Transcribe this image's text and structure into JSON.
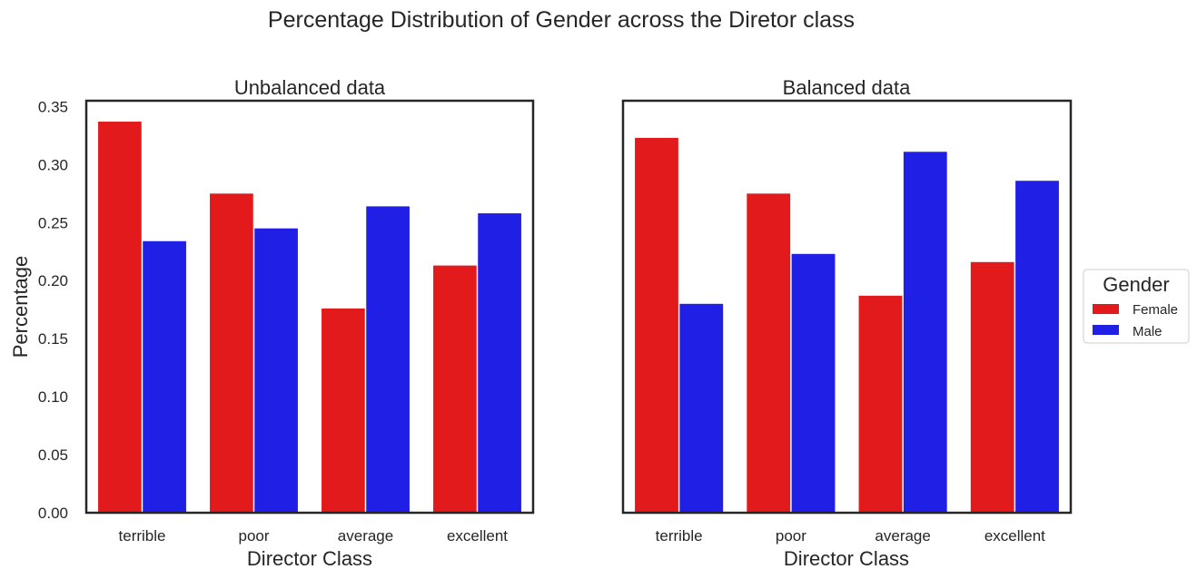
{
  "title": "Percentage Distribution of Gender across the Diretor class",
  "colors": {
    "female": "#e31a1c",
    "male": "#1f1fe6",
    "axes": "#262626"
  },
  "legend": {
    "title": "Gender",
    "items": [
      {
        "label": "Female",
        "color": "#e31a1c"
      },
      {
        "label": "Male",
        "color": "#1f1fe6"
      }
    ],
    "placement": "right"
  },
  "chart_data": [
    {
      "type": "bar",
      "title": "Unbalanced data",
      "xlabel": "Director Class",
      "ylabel": "Percentage",
      "categories": [
        "terrible",
        "poor",
        "average",
        "excellent"
      ],
      "series": [
        {
          "name": "Female",
          "values": [
            0.337,
            0.275,
            0.176,
            0.213
          ]
        },
        {
          "name": "Male",
          "values": [
            0.234,
            0.245,
            0.264,
            0.258
          ]
        }
      ],
      "ylim": [
        0,
        0.355
      ],
      "yticks": [
        "0.00",
        "0.05",
        "0.10",
        "0.15",
        "0.20",
        "0.25",
        "0.30",
        "0.35"
      ],
      "grid": false
    },
    {
      "type": "bar",
      "title": "Balanced data",
      "xlabel": "Director Class",
      "ylabel": "",
      "categories": [
        "terrible",
        "poor",
        "average",
        "excellent"
      ],
      "series": [
        {
          "name": "Female",
          "values": [
            0.323,
            0.275,
            0.187,
            0.216
          ]
        },
        {
          "name": "Male",
          "values": [
            0.18,
            0.223,
            0.311,
            0.286
          ]
        }
      ],
      "ylim": [
        0,
        0.355
      ],
      "yticks": [],
      "grid": false
    }
  ]
}
